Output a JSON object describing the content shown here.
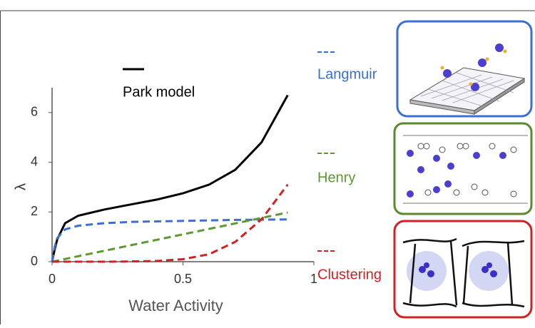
{
  "chart_data": {
    "type": "line",
    "x": [
      0,
      0.01,
      0.02,
      0.05,
      0.1,
      0.2,
      0.3,
      0.4,
      0.5,
      0.6,
      0.7,
      0.8,
      0.9
    ],
    "series": [
      {
        "name": "Park model",
        "color": "#000000",
        "dashed": false,
        "values": [
          0,
          0.5,
          0.9,
          1.55,
          1.85,
          2.1,
          2.3,
          2.5,
          2.75,
          3.1,
          3.7,
          4.8,
          6.7
        ]
      },
      {
        "name": "Langmuir",
        "color": "#3a6fd8",
        "dashed": true,
        "values": [
          0,
          0.6,
          0.95,
          1.3,
          1.45,
          1.55,
          1.6,
          1.62,
          1.64,
          1.66,
          1.68,
          1.69,
          1.7
        ]
      },
      {
        "name": "Henry",
        "color": "#5a9a2e",
        "dashed": true,
        "values": [
          0,
          0.02,
          0.04,
          0.11,
          0.22,
          0.44,
          0.66,
          0.88,
          1.1,
          1.32,
          1.54,
          1.76,
          1.98
        ]
      },
      {
        "name": "Clustering",
        "color": "#d42020",
        "dashed": true,
        "values": [
          0,
          0,
          0,
          0,
          0,
          0,
          0.01,
          0.03,
          0.1,
          0.3,
          0.8,
          1.7,
          3.1
        ]
      }
    ],
    "xlabel": "Water Activity",
    "ylabel": "λ",
    "xlim": [
      0,
      1
    ],
    "xticks": [
      0,
      0.5,
      1
    ],
    "ylim": [
      0,
      7
    ],
    "yticks": [
      0,
      2,
      4,
      6
    ]
  }
}
